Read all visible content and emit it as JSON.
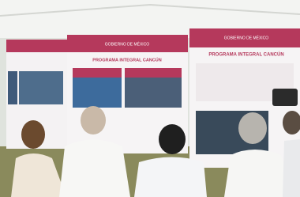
{
  "signs": [
    {
      "header": "GOBIERNO DE MÉXICO",
      "title": "PROGRAMA INTEGRAL CANCÚN"
    },
    {
      "header": "GOBIERNO DE MÉXICO",
      "title": "PROGRAMA INTEGRAL CANCÚN"
    }
  ]
}
